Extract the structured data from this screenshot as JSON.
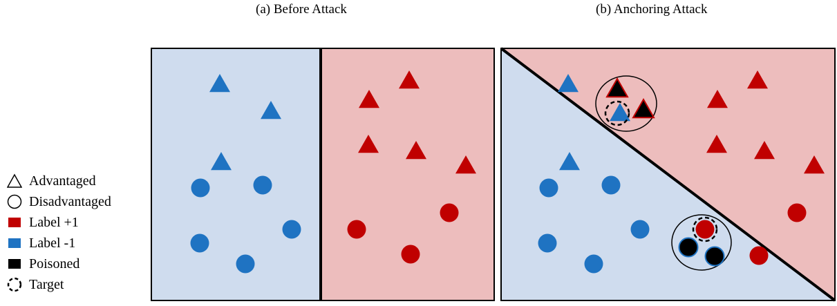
{
  "panels": {
    "a": {
      "title": "(a) Before Attack"
    },
    "b": {
      "title": "(b) Anchoring Attack"
    }
  },
  "legend": [
    {
      "label": "Advantaged",
      "icon": "triangle-outline-icon"
    },
    {
      "label": "Disadvantaged",
      "icon": "circle-outline-icon"
    },
    {
      "label": "Label +1",
      "icon": "red-square-icon"
    },
    {
      "label": "Label -1",
      "icon": "blue-square-icon"
    },
    {
      "label": "Poisoned",
      "icon": "black-square-icon"
    },
    {
      "label": "Target",
      "icon": "dashed-circle-icon"
    }
  ],
  "colors": {
    "label_pos": "#C00000",
    "label_neg": "#1F73C2",
    "poisoned": "#000000",
    "region_neg": "#CFDCEE",
    "region_pos": "#EDBDBD"
  }
}
